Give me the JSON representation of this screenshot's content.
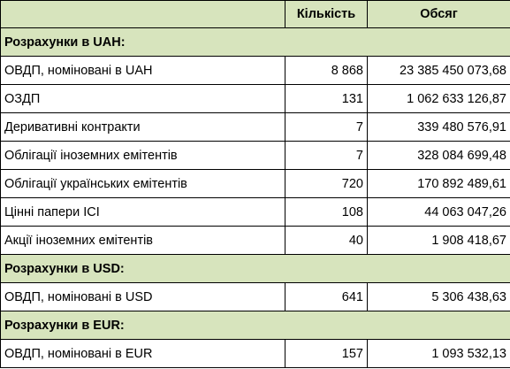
{
  "header": {
    "col1": "",
    "col2": "Кількість",
    "col3": "Обсяг"
  },
  "sections": [
    {
      "title": "Розрахунки в UAH:",
      "rows": [
        {
          "name": "ОВДП, номіновані в UAH",
          "count": "8 868",
          "volume": "23 385 450 073,68"
        },
        {
          "name": "ОЗДП",
          "count": "131",
          "volume": "1 062 633 126,87"
        },
        {
          "name": "Деривативні контракти",
          "count": "7",
          "volume": "339 480 576,91"
        },
        {
          "name": "Облігації іноземних емітентів",
          "count": "7",
          "volume": "328 084 699,48"
        },
        {
          "name": "Облігації українських емітентів",
          "count": "720",
          "volume": "170 892 489,61"
        },
        {
          "name": "Цінні папери ІСІ",
          "count": "108",
          "volume": "44 063 047,26"
        },
        {
          "name": "Акції іноземних емітентів",
          "count": "40",
          "volume": "1 908 418,67"
        }
      ]
    },
    {
      "title": "Розрахунки в USD:",
      "rows": [
        {
          "name": "ОВДП, номіновані в USD",
          "count": "641",
          "volume": "5 306 438,63"
        }
      ]
    },
    {
      "title": "Розрахунки в EUR:",
      "rows": [
        {
          "name": "ОВДП, номіновані в EUR",
          "count": "157",
          "volume": "1 093 532,13"
        }
      ]
    }
  ]
}
